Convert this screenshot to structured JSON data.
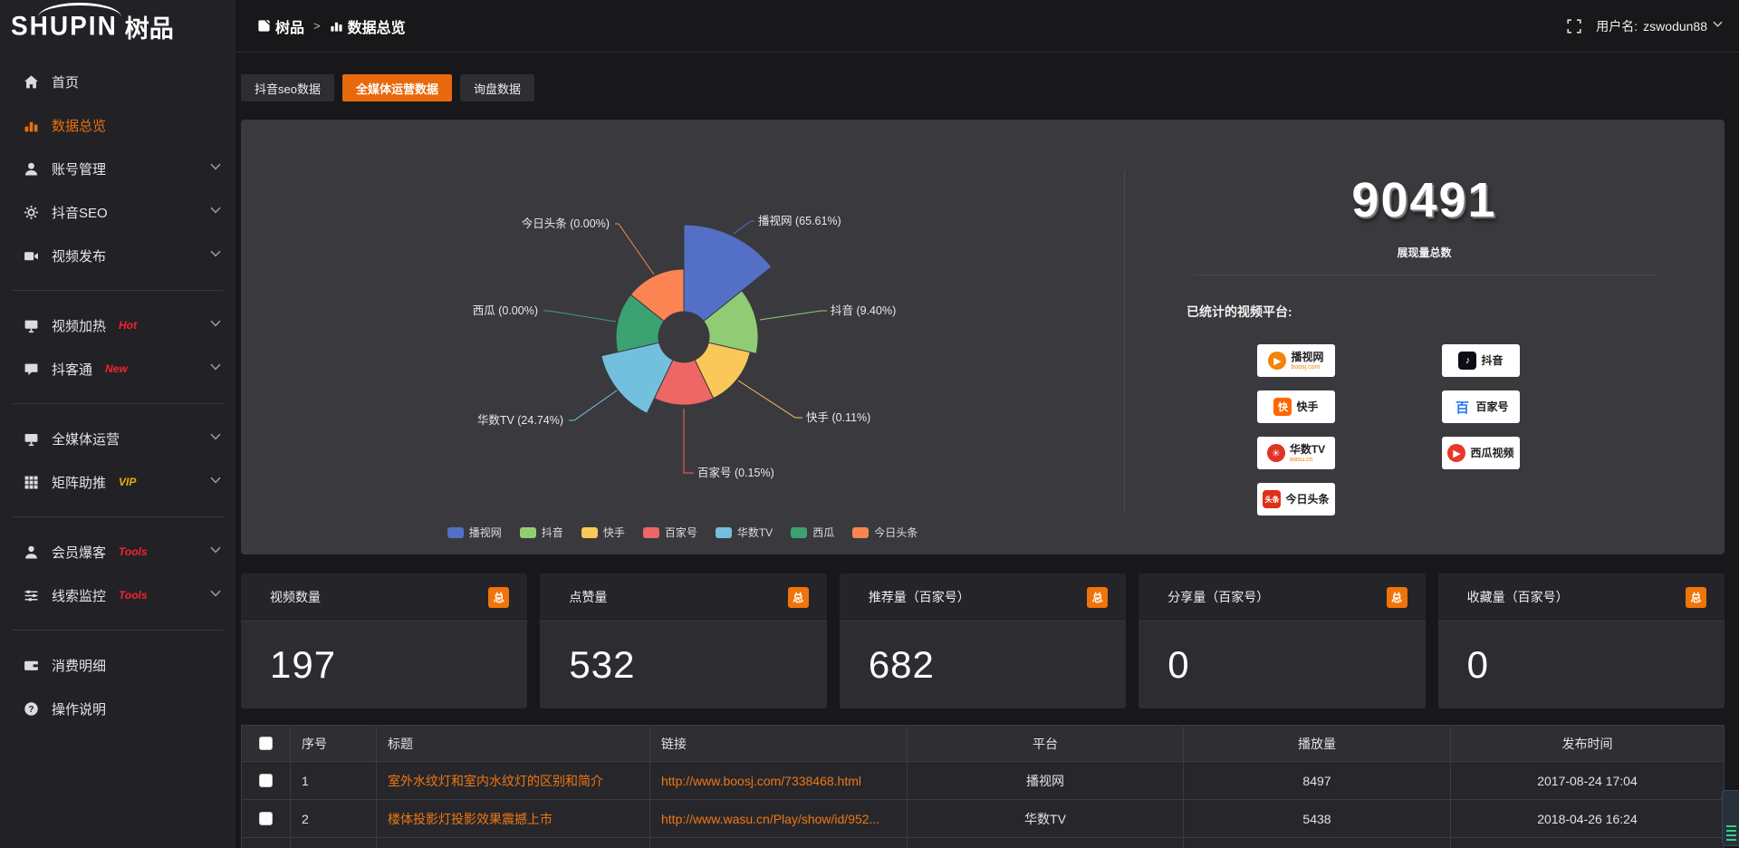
{
  "brand": {
    "logo_en": "SHUPIN",
    "logo_cn": "树品"
  },
  "topbar": {
    "breadcrumb": [
      {
        "icon": "app-icon",
        "label": "树品"
      },
      {
        "icon": "chart-icon",
        "label": "数据总览"
      }
    ],
    "separator": ">",
    "username_label": "用户名: ",
    "username": "zswodun88"
  },
  "sidebar": {
    "groups": [
      {
        "items": [
          {
            "icon": "home",
            "label": "首页",
            "active": false,
            "expandable": false
          },
          {
            "icon": "bars",
            "label": "数据总览",
            "active": true,
            "expandable": false
          },
          {
            "icon": "user",
            "label": "账号管理",
            "active": false,
            "expandable": true
          },
          {
            "icon": "gear",
            "label": "抖音SEO",
            "active": false,
            "expandable": true
          },
          {
            "icon": "camera",
            "label": "视频发布",
            "active": false,
            "expandable": true
          }
        ]
      },
      {
        "items": [
          {
            "icon": "screen",
            "label": "视频加热",
            "tag": "Hot",
            "tag_color": "#f5222d",
            "expandable": true
          },
          {
            "icon": "chat",
            "label": "抖客通",
            "tag": "New",
            "tag_color": "#f5222d",
            "expandable": true
          }
        ]
      },
      {
        "items": [
          {
            "icon": "monitor",
            "label": "全媒体运营",
            "expandable": true
          },
          {
            "icon": "grid",
            "label": "矩阵助推",
            "tag": "VIP",
            "tag_color": "#e8b004",
            "expandable": true
          }
        ]
      },
      {
        "items": [
          {
            "icon": "member",
            "label": "会员爆客",
            "tag": "Tools",
            "tag_color": "#f5222d",
            "expandable": true
          },
          {
            "icon": "sliders",
            "label": "线索监控",
            "tag": "Tools",
            "tag_color": "#f5222d",
            "expandable": true
          }
        ]
      },
      {
        "items": [
          {
            "icon": "wallet",
            "label": "消费明细",
            "expandable": false
          },
          {
            "icon": "question",
            "label": "操作说明",
            "expandable": false
          }
        ]
      }
    ]
  },
  "tabs": [
    {
      "label": "抖音seo数据",
      "active": false
    },
    {
      "label": "全媒体运营数据",
      "active": true
    },
    {
      "label": "询盘数据",
      "active": false
    }
  ],
  "chart_data": {
    "type": "pie",
    "variant": "nightingale-rose",
    "unit": "%",
    "label_format": "{name} ({value}%)",
    "legend_position": "bottom",
    "items": [
      {
        "name": "播视网",
        "value": 65.61,
        "color": "#5470c6"
      },
      {
        "name": "抖音",
        "value": 9.4,
        "color": "#91cc75"
      },
      {
        "name": "快手",
        "value": 0.11,
        "color": "#fac858"
      },
      {
        "name": "百家号",
        "value": 0.15,
        "color": "#ee6666"
      },
      {
        "name": "华数TV",
        "value": 24.74,
        "color": "#73c0de"
      },
      {
        "name": "西瓜",
        "value": 0.0,
        "color": "#3ba272"
      },
      {
        "name": "今日头条",
        "value": 0.0,
        "color": "#fc8452"
      }
    ]
  },
  "summary": {
    "total_value": "90491",
    "total_label": "展现量总数",
    "platforms_title": "已统计的视频平台:",
    "platforms": [
      {
        "name": "播视网",
        "sub": "boosj.com",
        "logo": "boosj-logo",
        "logo_color": "#f5820b",
        "logo_glyph": "▶",
        "shape": "round"
      },
      {
        "name": "抖音",
        "sub": "",
        "logo": "douyin-logo",
        "logo_color": "#0d0d16",
        "logo_glyph": "♪",
        "shape": "square"
      },
      {
        "name": "快手",
        "sub": "",
        "logo": "kuaishou-logo",
        "logo_color": "#ff6600",
        "logo_glyph": "快",
        "shape": "square"
      },
      {
        "name": "百家号",
        "sub": "",
        "logo": "baijiahao-logo",
        "logo_color": "#2d77ee",
        "logo_glyph": "百",
        "shape": "text"
      },
      {
        "name": "华数TV",
        "sub": "wasu.cn",
        "logo": "wasu-logo",
        "logo_color": "#e03426",
        "logo_glyph": "✳",
        "shape": "round"
      },
      {
        "name": "西瓜视频",
        "sub": "",
        "logo": "xigua-logo",
        "logo_color": "#e8372c",
        "logo_glyph": "▶",
        "shape": "round"
      },
      {
        "name": "今日头条",
        "sub": "",
        "logo": "toutiao-logo",
        "logo_color": "#de2f17",
        "logo_glyph": "头条",
        "shape": "square"
      }
    ]
  },
  "stats": [
    {
      "title": "视频数量",
      "badge": "总",
      "value": "197"
    },
    {
      "title": "点赞量",
      "badge": "总",
      "value": "532"
    },
    {
      "title": "推荐量（百家号）",
      "badge": "总",
      "value": "682"
    },
    {
      "title": "分享量（百家号）",
      "badge": "总",
      "value": "0"
    },
    {
      "title": "收藏量（百家号）",
      "badge": "总",
      "value": "0"
    }
  ],
  "table": {
    "columns": [
      "序号",
      "标题",
      "链接",
      "平台",
      "播放量",
      "发布时间"
    ],
    "rows": [
      {
        "checked": false,
        "seq": "1",
        "title": "室外水纹灯和室内水纹灯的区别和简介",
        "link": "http://www.boosj.com/7338468.html",
        "platform": "播视网",
        "plays": "8497",
        "published": "2017-08-24 17:04"
      },
      {
        "checked": false,
        "seq": "2",
        "title": "楼体投影灯投影效果震撼上市",
        "link": "http://www.wasu.cn/Play/show/id/952...",
        "platform": "华数TV",
        "plays": "5438",
        "published": "2018-04-26 16:24"
      }
    ]
  }
}
